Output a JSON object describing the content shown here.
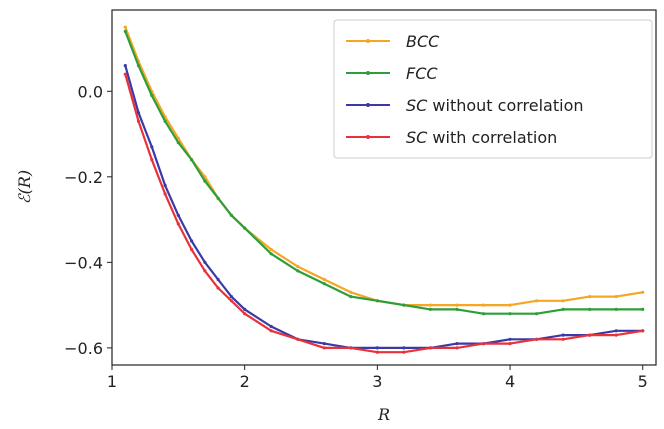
{
  "chart_data": {
    "type": "line",
    "title": "",
    "xlabel": "R",
    "ylabel": "ℰ(R)",
    "xlim": [
      1.0,
      5.1
    ],
    "ylim": [
      -0.64,
      0.19
    ],
    "xticks": [
      1,
      2,
      3,
      4,
      5
    ],
    "xtick_labels": [
      "1",
      "2",
      "3",
      "4",
      "5"
    ],
    "yticks": [
      0.0,
      -0.2,
      -0.4,
      -0.6
    ],
    "ytick_labels": [
      "0.0",
      "−0.2",
      "−0.4",
      "−0.6"
    ],
    "grid": false,
    "legend_position": "top-right",
    "series": [
      {
        "name_style": "BCC",
        "name_plain": "",
        "color": "#f5a623",
        "points": [
          [
            1.1,
            0.15
          ],
          [
            1.2,
            0.07
          ],
          [
            1.3,
            0.0
          ],
          [
            1.4,
            -0.06
          ],
          [
            1.5,
            -0.11
          ],
          [
            1.6,
            -0.16
          ],
          [
            1.7,
            -0.2
          ],
          [
            1.8,
            -0.25
          ],
          [
            1.9,
            -0.29
          ],
          [
            2.0,
            -0.32
          ],
          [
            2.2,
            -0.37
          ],
          [
            2.4,
            -0.41
          ],
          [
            2.6,
            -0.44
          ],
          [
            2.8,
            -0.47
          ],
          [
            3.0,
            -0.49
          ],
          [
            3.2,
            -0.5
          ],
          [
            3.4,
            -0.5
          ],
          [
            3.6,
            -0.5
          ],
          [
            3.8,
            -0.5
          ],
          [
            4.0,
            -0.5
          ],
          [
            4.2,
            -0.49
          ],
          [
            4.4,
            -0.49
          ],
          [
            4.6,
            -0.48
          ],
          [
            4.8,
            -0.48
          ],
          [
            5.0,
            -0.47
          ]
        ]
      },
      {
        "name_style": "FCC",
        "name_plain": "",
        "color": "#2e9e3a",
        "points": [
          [
            1.1,
            0.14
          ],
          [
            1.2,
            0.06
          ],
          [
            1.3,
            -0.01
          ],
          [
            1.4,
            -0.07
          ],
          [
            1.5,
            -0.12
          ],
          [
            1.6,
            -0.16
          ],
          [
            1.7,
            -0.21
          ],
          [
            1.8,
            -0.25
          ],
          [
            1.9,
            -0.29
          ],
          [
            2.0,
            -0.32
          ],
          [
            2.2,
            -0.38
          ],
          [
            2.4,
            -0.42
          ],
          [
            2.6,
            -0.45
          ],
          [
            2.8,
            -0.48
          ],
          [
            3.0,
            -0.49
          ],
          [
            3.2,
            -0.5
          ],
          [
            3.4,
            -0.51
          ],
          [
            3.6,
            -0.51
          ],
          [
            3.8,
            -0.52
          ],
          [
            4.0,
            -0.52
          ],
          [
            4.2,
            -0.52
          ],
          [
            4.4,
            -0.51
          ],
          [
            4.6,
            -0.51
          ],
          [
            4.8,
            -0.51
          ],
          [
            5.0,
            -0.51
          ]
        ]
      },
      {
        "name_style": "SC",
        "name_plain": " without correlation",
        "color": "#3a3aa6",
        "points": [
          [
            1.1,
            0.06
          ],
          [
            1.2,
            -0.05
          ],
          [
            1.3,
            -0.13
          ],
          [
            1.4,
            -0.22
          ],
          [
            1.5,
            -0.29
          ],
          [
            1.6,
            -0.35
          ],
          [
            1.7,
            -0.4
          ],
          [
            1.8,
            -0.44
          ],
          [
            1.9,
            -0.48
          ],
          [
            2.0,
            -0.51
          ],
          [
            2.2,
            -0.55
          ],
          [
            2.4,
            -0.58
          ],
          [
            2.6,
            -0.59
          ],
          [
            2.8,
            -0.6
          ],
          [
            3.0,
            -0.6
          ],
          [
            3.2,
            -0.6
          ],
          [
            3.4,
            -0.6
          ],
          [
            3.6,
            -0.59
          ],
          [
            3.8,
            -0.59
          ],
          [
            4.0,
            -0.58
          ],
          [
            4.2,
            -0.58
          ],
          [
            4.4,
            -0.57
          ],
          [
            4.6,
            -0.57
          ],
          [
            4.8,
            -0.56
          ],
          [
            5.0,
            -0.56
          ]
        ]
      },
      {
        "name_style": "SC",
        "name_plain": " with correlation",
        "color": "#e8323a",
        "points": [
          [
            1.1,
            0.04
          ],
          [
            1.2,
            -0.07
          ],
          [
            1.3,
            -0.16
          ],
          [
            1.4,
            -0.24
          ],
          [
            1.5,
            -0.31
          ],
          [
            1.6,
            -0.37
          ],
          [
            1.7,
            -0.42
          ],
          [
            1.8,
            -0.46
          ],
          [
            1.9,
            -0.49
          ],
          [
            2.0,
            -0.52
          ],
          [
            2.2,
            -0.56
          ],
          [
            2.4,
            -0.58
          ],
          [
            2.6,
            -0.6
          ],
          [
            2.8,
            -0.6
          ],
          [
            3.0,
            -0.61
          ],
          [
            3.2,
            -0.61
          ],
          [
            3.4,
            -0.6
          ],
          [
            3.6,
            -0.6
          ],
          [
            3.8,
            -0.59
          ],
          [
            4.0,
            -0.59
          ],
          [
            4.2,
            -0.58
          ],
          [
            4.4,
            -0.58
          ],
          [
            4.6,
            -0.57
          ],
          [
            4.8,
            -0.57
          ],
          [
            5.0,
            -0.56
          ]
        ]
      }
    ]
  }
}
